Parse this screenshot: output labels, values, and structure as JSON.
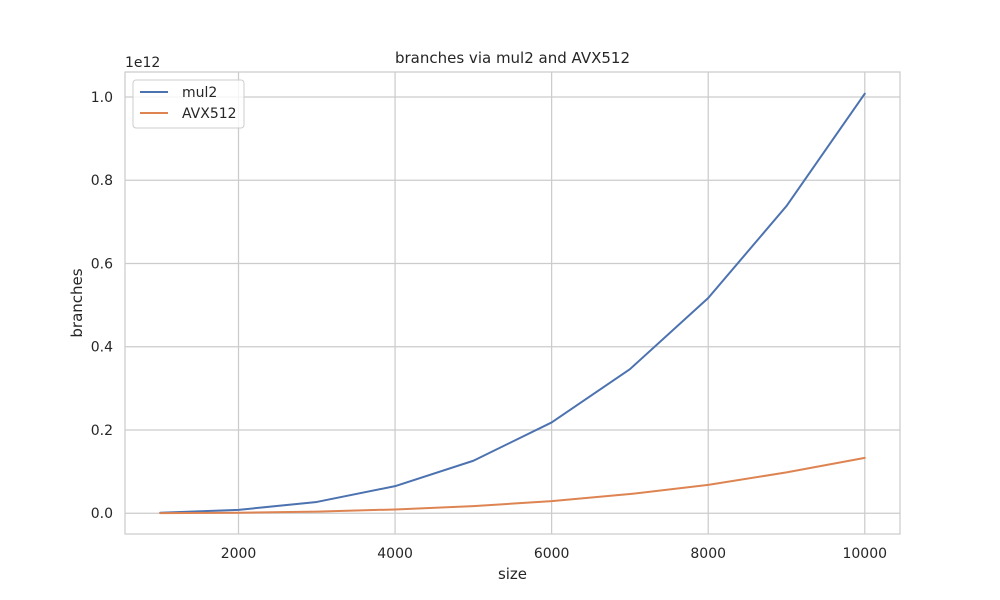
{
  "chart_data": {
    "type": "line",
    "title": "branches via mul2 and AVX512",
    "xlabel": "size",
    "ylabel": "branches",
    "offset_label": "1e12",
    "y_scale_factor": 1000000000000.0,
    "x": [
      1000,
      2000,
      3000,
      4000,
      5000,
      6000,
      7000,
      8000,
      9000,
      10000
    ],
    "series": [
      {
        "name": "mul2",
        "color": "#4c72b0",
        "values": [
          1000000000.0,
          8000000000.0,
          27000000000.0,
          65000000000.0,
          126000000000.0,
          218000000000.0,
          346000000000.0,
          517000000000.0,
          738000000000.0,
          1008000000000.0
        ]
      },
      {
        "name": "AVX512",
        "color": "#dd8452",
        "values": [
          100000000.0,
          1100000000.0,
          3900000000.0,
          9000000000.0,
          17000000000.0,
          29000000000.0,
          46000000000.0,
          68000000000.0,
          98000000000.0,
          133000000000.0
        ]
      }
    ],
    "xlim": [
      550,
      10450
    ],
    "ylim": [
      -50000000000.0,
      1060000000000.0
    ],
    "xticks": [
      2000,
      4000,
      6000,
      8000,
      10000
    ],
    "xtick_labels": [
      "2000",
      "4000",
      "6000",
      "8000",
      "10000"
    ],
    "yticks": [
      0,
      200000000000.0,
      400000000000.0,
      600000000000.0,
      800000000000.0,
      1000000000000.0
    ],
    "ytick_labels": [
      "0.0",
      "0.2",
      "0.4",
      "0.6",
      "0.8",
      "1.0"
    ],
    "grid": true,
    "legend_position": "upper-left"
  }
}
